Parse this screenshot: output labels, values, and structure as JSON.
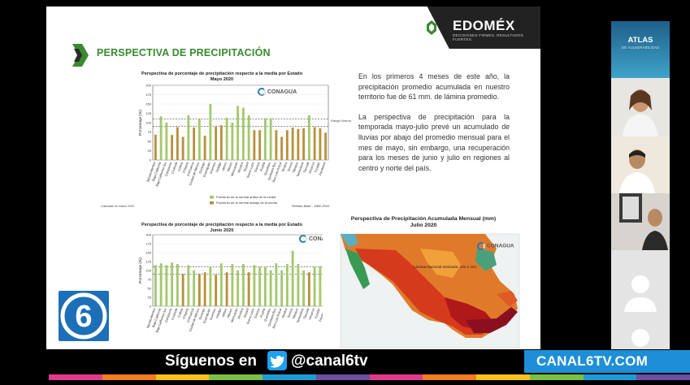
{
  "slide": {
    "title": "PERSPECTIVA DE PRECIPITACIÓN",
    "logo_text": "EDOMÉX",
    "logo_tagline": "DECISIONES FIRMES, RESULTADOS FUERTES.",
    "body_paragraphs": [
      "En los primeros 4 meses de este año, la precipitación promedio acumulada en nuestro territorio fue de 61 mm. de lámina promedio.",
      "La perspectiva de precipitación para la temporada mayo-julio prevé un acumulado de lluvias por abajo del promedio mensual para el mes de mayo, sin embargo, una recuperación para los meses de junio y julio en regiones al centro y norte del país."
    ]
  },
  "chart_may": {
    "title": "Perspectiva de porcentaje de precipitación respecto a la media por Estado",
    "subtitle": "Mayo 2020",
    "agency": "CONAGUA",
    "ylabel": "Porcentaje (%)",
    "band_label": "Rango Normal",
    "legend": [
      "Porciento de la normal arriba de la media",
      "Porciento de la normal debajo de la media"
    ],
    "footnote_left": "Calculado en marzo 2020",
    "footnote_right": "Periodo Base : 1981-2010"
  },
  "chart_june": {
    "title": "Perspectiva de porcentaje de precipitación respecto a la media por Estado",
    "subtitle": "Junio 2020",
    "agency": "CONAGUA",
    "ylabel": "Porcentaje (%)",
    "band_label": "Rango Normal"
  },
  "chart_data": [
    {
      "type": "bar",
      "title": "Perspectiva de porcentaje de precipitación respecto a la media por Estado",
      "subtitle": "Mayo 2020",
      "ylabel": "Porcentaje (%)",
      "ylim": [
        0,
        200
      ],
      "yticks": [
        0,
        25,
        50,
        75,
        100,
        125,
        150,
        175,
        200
      ],
      "normal_band": [
        90,
        110
      ],
      "categories": [
        "Aguascalientes",
        "Baja California",
        "Baja California Sur",
        "Campeche",
        "Coahuila",
        "Colima",
        "Chiapas",
        "Chihuahua",
        "Ciudad de México",
        "Durango",
        "Guanajuato",
        "Guerrero",
        "Hidalgo",
        "Jalisco",
        "México",
        "Michoacán",
        "Morelos",
        "Nayarit",
        "Nuevo León",
        "Oaxaca",
        "Puebla",
        "Querétaro",
        "Quintana Roo",
        "San Luis Potosí",
        "Sinaloa",
        "Sonora",
        "Tabasco",
        "Tamaulipas",
        "Tlaxcala",
        "Veracruz",
        "Yucatán",
        "Zacatecas"
      ],
      "values": [
        68,
        117,
        100,
        67,
        88,
        62,
        120,
        87,
        110,
        65,
        150,
        89,
        93,
        113,
        100,
        145,
        140,
        120,
        80,
        80,
        112,
        112,
        80,
        62,
        80,
        87,
        83,
        85,
        120,
        88,
        85,
        73
      ],
      "above_normal_color": "#a3c86b",
      "below_normal_color": "#b8903a"
    },
    {
      "type": "bar",
      "title": "Perspectiva de porcentaje de precipitación respecto a la media por Estado",
      "subtitle": "Junio 2020",
      "ylabel": "Porcentaje (%)",
      "ylim": [
        0,
        200
      ],
      "yticks": [
        0,
        25,
        50,
        75,
        100,
        125,
        150,
        175,
        200
      ],
      "normal_band": [
        90,
        110
      ],
      "categories": [
        "Aguascalientes",
        "Baja California",
        "Baja California Sur",
        "Campeche",
        "Coahuila",
        "Colima",
        "Chiapas",
        "Chihuahua",
        "Ciudad de México",
        "Durango",
        "Guanajuato",
        "Guerrero",
        "Hidalgo",
        "Jalisco",
        "México",
        "Michoacán",
        "Morelos",
        "Nayarit",
        "Nuevo León",
        "Oaxaca",
        "Puebla",
        "Querétaro",
        "Quintana Roo",
        "San Luis Potosí",
        "Sinaloa",
        "Sonora",
        "Tabasco",
        "Tamaulipas",
        "Tlaxcala",
        "Veracruz",
        "Yucatán",
        "Zacatecas"
      ],
      "values": [
        115,
        120,
        115,
        122,
        118,
        90,
        115,
        100,
        90,
        95,
        110,
        88,
        120,
        95,
        118,
        100,
        118,
        95,
        115,
        110,
        110,
        100,
        120,
        100,
        118,
        155,
        118,
        100,
        95,
        110,
        112,
        95
      ],
      "above_normal_color": "#a3c86b",
      "below_normal_color": "#b8903a"
    }
  ],
  "map": {
    "title": "Perspectiva de Precipitación Acumulada Mensual (mm)",
    "subtitle": "Julio 2020",
    "agency": "CONAGUA",
    "annotation": "Lámina Nacional estimada: 134.1 mm"
  },
  "sidebar": {
    "atlas_title": "ATLAS",
    "atlas_subtitle": "DE VULNERABILIDAD"
  },
  "overlay": {
    "follow_label": "Síguenos en",
    "handle": "@canal6tv",
    "site": "CANAL6TV.COM",
    "channel_number": "6",
    "strip_colors": [
      "#e33a8c",
      "#f47c20",
      "#f8c21b",
      "#7ac143",
      "#1e9bd7",
      "#6b4fa0",
      "#e33a8c",
      "#f47c20",
      "#f8c21b",
      "#7ac143",
      "#1e9bd7",
      "#6b4fa0"
    ]
  }
}
